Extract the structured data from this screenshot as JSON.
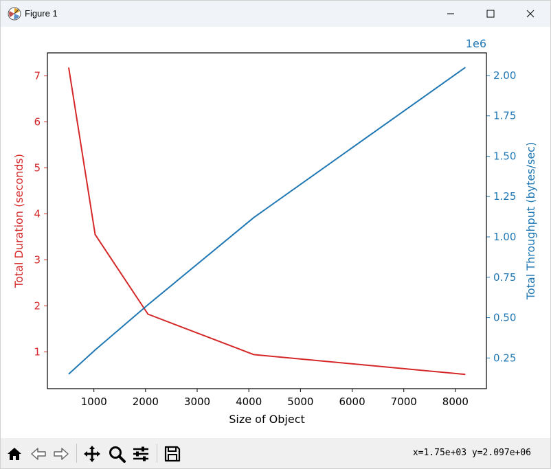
{
  "window": {
    "title": "Figure 1"
  },
  "toolbar": {
    "coords": "x=1.75e+03 y=2.097e+06",
    "tools": [
      "home-icon",
      "back-icon",
      "forward-icon",
      "pan-icon",
      "zoom-icon",
      "configure-subplots-icon",
      "save-icon"
    ]
  },
  "colors": {
    "duration": "#d62728",
    "throughput": "#1f77b4"
  },
  "chart_data": {
    "type": "line",
    "xlabel": "Size of Object",
    "ylabel_left": "Total Duration (seconds)",
    "ylabel_right": "Total Throughput (bytes/sec)",
    "right_offset_text": "1e6",
    "xlim": [
      100,
      8600
    ],
    "ylim_left": [
      0.2,
      7.5
    ],
    "ylim_right": [
      0.06,
      2.14
    ],
    "x_ticks": [
      1000,
      2000,
      3000,
      4000,
      5000,
      6000,
      7000,
      8000
    ],
    "x_tick_labels": [
      "1000",
      "2000",
      "3000",
      "4000",
      "5000",
      "6000",
      "7000",
      "8000"
    ],
    "y_left_ticks": [
      1,
      2,
      3,
      4,
      5,
      6,
      7
    ],
    "y_left_tick_labels": [
      "1",
      "2",
      "3",
      "4",
      "5",
      "6",
      "7"
    ],
    "y_right_ticks": [
      0.25,
      0.5,
      0.75,
      1.0,
      1.25,
      1.5,
      1.75,
      2.0
    ],
    "y_right_tick_labels": [
      "0.25",
      "0.50",
      "0.75",
      "1.00",
      "1.25",
      "1.50",
      "1.75",
      "2.00"
    ],
    "grid": false,
    "series": [
      {
        "axis": "left",
        "x": [
          512,
          1024,
          2048,
          4096,
          8192
        ],
        "values": [
          7.18,
          3.55,
          1.82,
          0.94,
          0.51
        ]
      },
      {
        "axis": "right",
        "x": [
          512,
          1024,
          2048,
          4096,
          8192
        ],
        "values": [
          0.15,
          0.3,
          0.58,
          1.12,
          2.05
        ]
      }
    ]
  }
}
